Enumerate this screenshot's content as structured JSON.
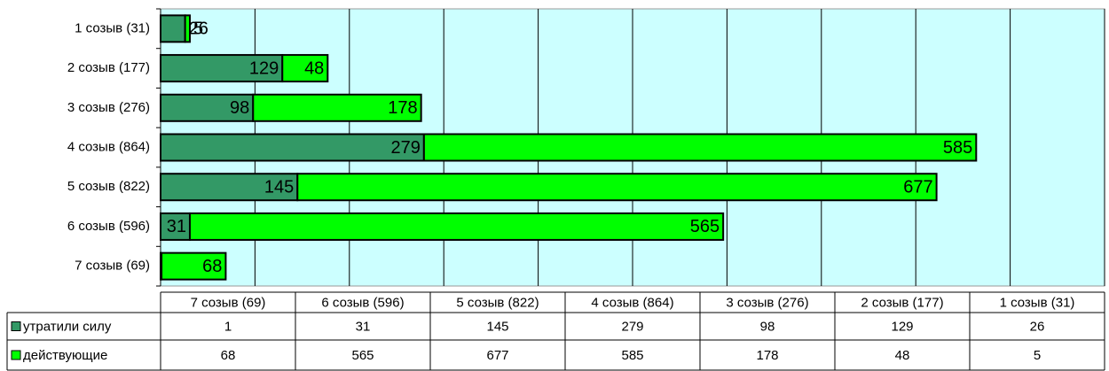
{
  "chart_data": {
    "type": "bar",
    "orientation": "horizontal",
    "categories": [
      "7 созыв (69)",
      "6 созыв (596)",
      "5 созыв (822)",
      "4 созыв (864)",
      "3 созыв (276)",
      "2 созыв (177)",
      "1 созыв (31)"
    ],
    "series": [
      {
        "name": "утратили силу",
        "color": "#339966",
        "values": [
          1,
          31,
          145,
          279,
          98,
          129,
          26
        ]
      },
      {
        "name": "действующие",
        "color": "#00ff00",
        "values": [
          68,
          565,
          677,
          585,
          178,
          48,
          5
        ]
      }
    ],
    "xlim": [
      0,
      1000
    ],
    "xticks": [
      0,
      100,
      200,
      300,
      400,
      500,
      600,
      700,
      800,
      900,
      1000
    ],
    "grid": true,
    "stacked": true,
    "data_table": true,
    "plot_background": "#ccffff"
  }
}
